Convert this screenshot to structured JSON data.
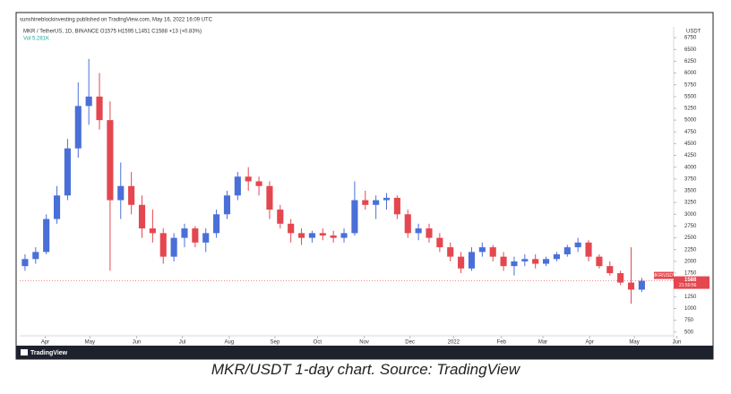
{
  "header": {
    "publisher": "sunshineblockinvesting published on TradingView.com, May 16, 2022 16:09 UTC",
    "symbol_line": "MKR / TetherUS, 1D, BINANCE  O1575  H1595  L1451  C1588  +13 (+0.83%)",
    "volume_line": "Vol  5.281K"
  },
  "chart_data": {
    "type": "candlestick",
    "currency": "USDT",
    "up_color": "#4a6fd8",
    "down_color": "#e4474f",
    "xlim": [
      -0.5,
      61
    ],
    "ylim": [
      420,
      6980
    ],
    "xticks": [
      {
        "value": 1.9,
        "label": "Apr"
      },
      {
        "value": 6.1,
        "label": "May"
      },
      {
        "value": 10.5,
        "label": "Jun"
      },
      {
        "value": 14.8,
        "label": "Jul"
      },
      {
        "value": 19.2,
        "label": "Aug"
      },
      {
        "value": 23.5,
        "label": "Sep"
      },
      {
        "value": 27.5,
        "label": "Oct"
      },
      {
        "value": 31.9,
        "label": "Nov"
      },
      {
        "value": 36.2,
        "label": "Dec"
      },
      {
        "value": 40.3,
        "label": "2022"
      },
      {
        "value": 44.8,
        "label": "Feb"
      },
      {
        "value": 48.7,
        "label": "Mar"
      },
      {
        "value": 53.1,
        "label": "Apr"
      },
      {
        "value": 57.3,
        "label": "May"
      },
      {
        "value": 61.3,
        "label": "Jun"
      }
    ],
    "yticks": [
      500,
      750,
      1000,
      1250,
      1750,
      2000,
      2250,
      2500,
      2750,
      3000,
      3250,
      3500,
      3750,
      4000,
      4250,
      4500,
      4750,
      5000,
      5250,
      5500,
      5750,
      6000,
      6250,
      6500,
      6750
    ],
    "last_price": 1588,
    "last_label": "MKR/USDT",
    "countdown": "21:50:56",
    "candles": [
      [
        1900,
        2150,
        1800,
        2050
      ],
      [
        2050,
        2300,
        1950,
        2200
      ],
      [
        2200,
        3000,
        2150,
        2900
      ],
      [
        2900,
        3600,
        2800,
        3400
      ],
      [
        3400,
        4600,
        3300,
        4400
      ],
      [
        4400,
        5800,
        4200,
        5300
      ],
      [
        5300,
        6300,
        4900,
        5500
      ],
      [
        5500,
        6000,
        4800,
        5000
      ],
      [
        5000,
        5400,
        1800,
        3300
      ],
      [
        3300,
        4100,
        2900,
        3600
      ],
      [
        3600,
        3900,
        3000,
        3200
      ],
      [
        3200,
        3400,
        2500,
        2700
      ],
      [
        2700,
        3100,
        2400,
        2600
      ],
      [
        2600,
        2700,
        1950,
        2100
      ],
      [
        2100,
        2600,
        2000,
        2500
      ],
      [
        2500,
        2800,
        2300,
        2700
      ],
      [
        2700,
        2750,
        2300,
        2400
      ],
      [
        2400,
        2700,
        2200,
        2600
      ],
      [
        2600,
        3100,
        2500,
        3000
      ],
      [
        3000,
        3500,
        2900,
        3400
      ],
      [
        3400,
        3900,
        3300,
        3800
      ],
      [
        3800,
        4000,
        3500,
        3700
      ],
      [
        3700,
        3800,
        3400,
        3600
      ],
      [
        3600,
        3700,
        2900,
        3100
      ],
      [
        3100,
        3200,
        2700,
        2800
      ],
      [
        2800,
        2900,
        2400,
        2600
      ],
      [
        2600,
        2700,
        2350,
        2500
      ],
      [
        2500,
        2650,
        2400,
        2600
      ],
      [
        2600,
        2700,
        2450,
        2550
      ],
      [
        2550,
        2650,
        2400,
        2500
      ],
      [
        2500,
        2700,
        2400,
        2600
      ],
      [
        2600,
        3700,
        2550,
        3300
      ],
      [
        3300,
        3500,
        3100,
        3200
      ],
      [
        3200,
        3400,
        2900,
        3300
      ],
      [
        3300,
        3450,
        3100,
        3350
      ],
      [
        3350,
        3400,
        2900,
        3000
      ],
      [
        3000,
        3100,
        2500,
        2600
      ],
      [
        2600,
        2800,
        2450,
        2700
      ],
      [
        2700,
        2800,
        2400,
        2500
      ],
      [
        2500,
        2600,
        2200,
        2300
      ],
      [
        2300,
        2400,
        2000,
        2100
      ],
      [
        2100,
        2200,
        1750,
        1850
      ],
      [
        1850,
        2300,
        1800,
        2200
      ],
      [
        2200,
        2400,
        2100,
        2300
      ],
      [
        2300,
        2350,
        2000,
        2100
      ],
      [
        2100,
        2200,
        1800,
        1900
      ],
      [
        1900,
        2100,
        1700,
        2000
      ],
      [
        2000,
        2150,
        1900,
        2050
      ],
      [
        2050,
        2150,
        1850,
        1950
      ],
      [
        1950,
        2100,
        1900,
        2050
      ],
      [
        2050,
        2200,
        2000,
        2150
      ],
      [
        2150,
        2350,
        2100,
        2300
      ],
      [
        2300,
        2500,
        2200,
        2400
      ],
      [
        2400,
        2450,
        2000,
        2100
      ],
      [
        2100,
        2150,
        1850,
        1900
      ],
      [
        1900,
        2000,
        1700,
        1750
      ],
      [
        1750,
        1800,
        1500,
        1550
      ],
      [
        1550,
        2300,
        1100,
        1400
      ],
      [
        1400,
        1650,
        1350,
        1588
      ]
    ]
  },
  "footer": {
    "brand": "TradingView",
    "caption": "MKR/USDT 1-day chart. Source: TradingView"
  }
}
